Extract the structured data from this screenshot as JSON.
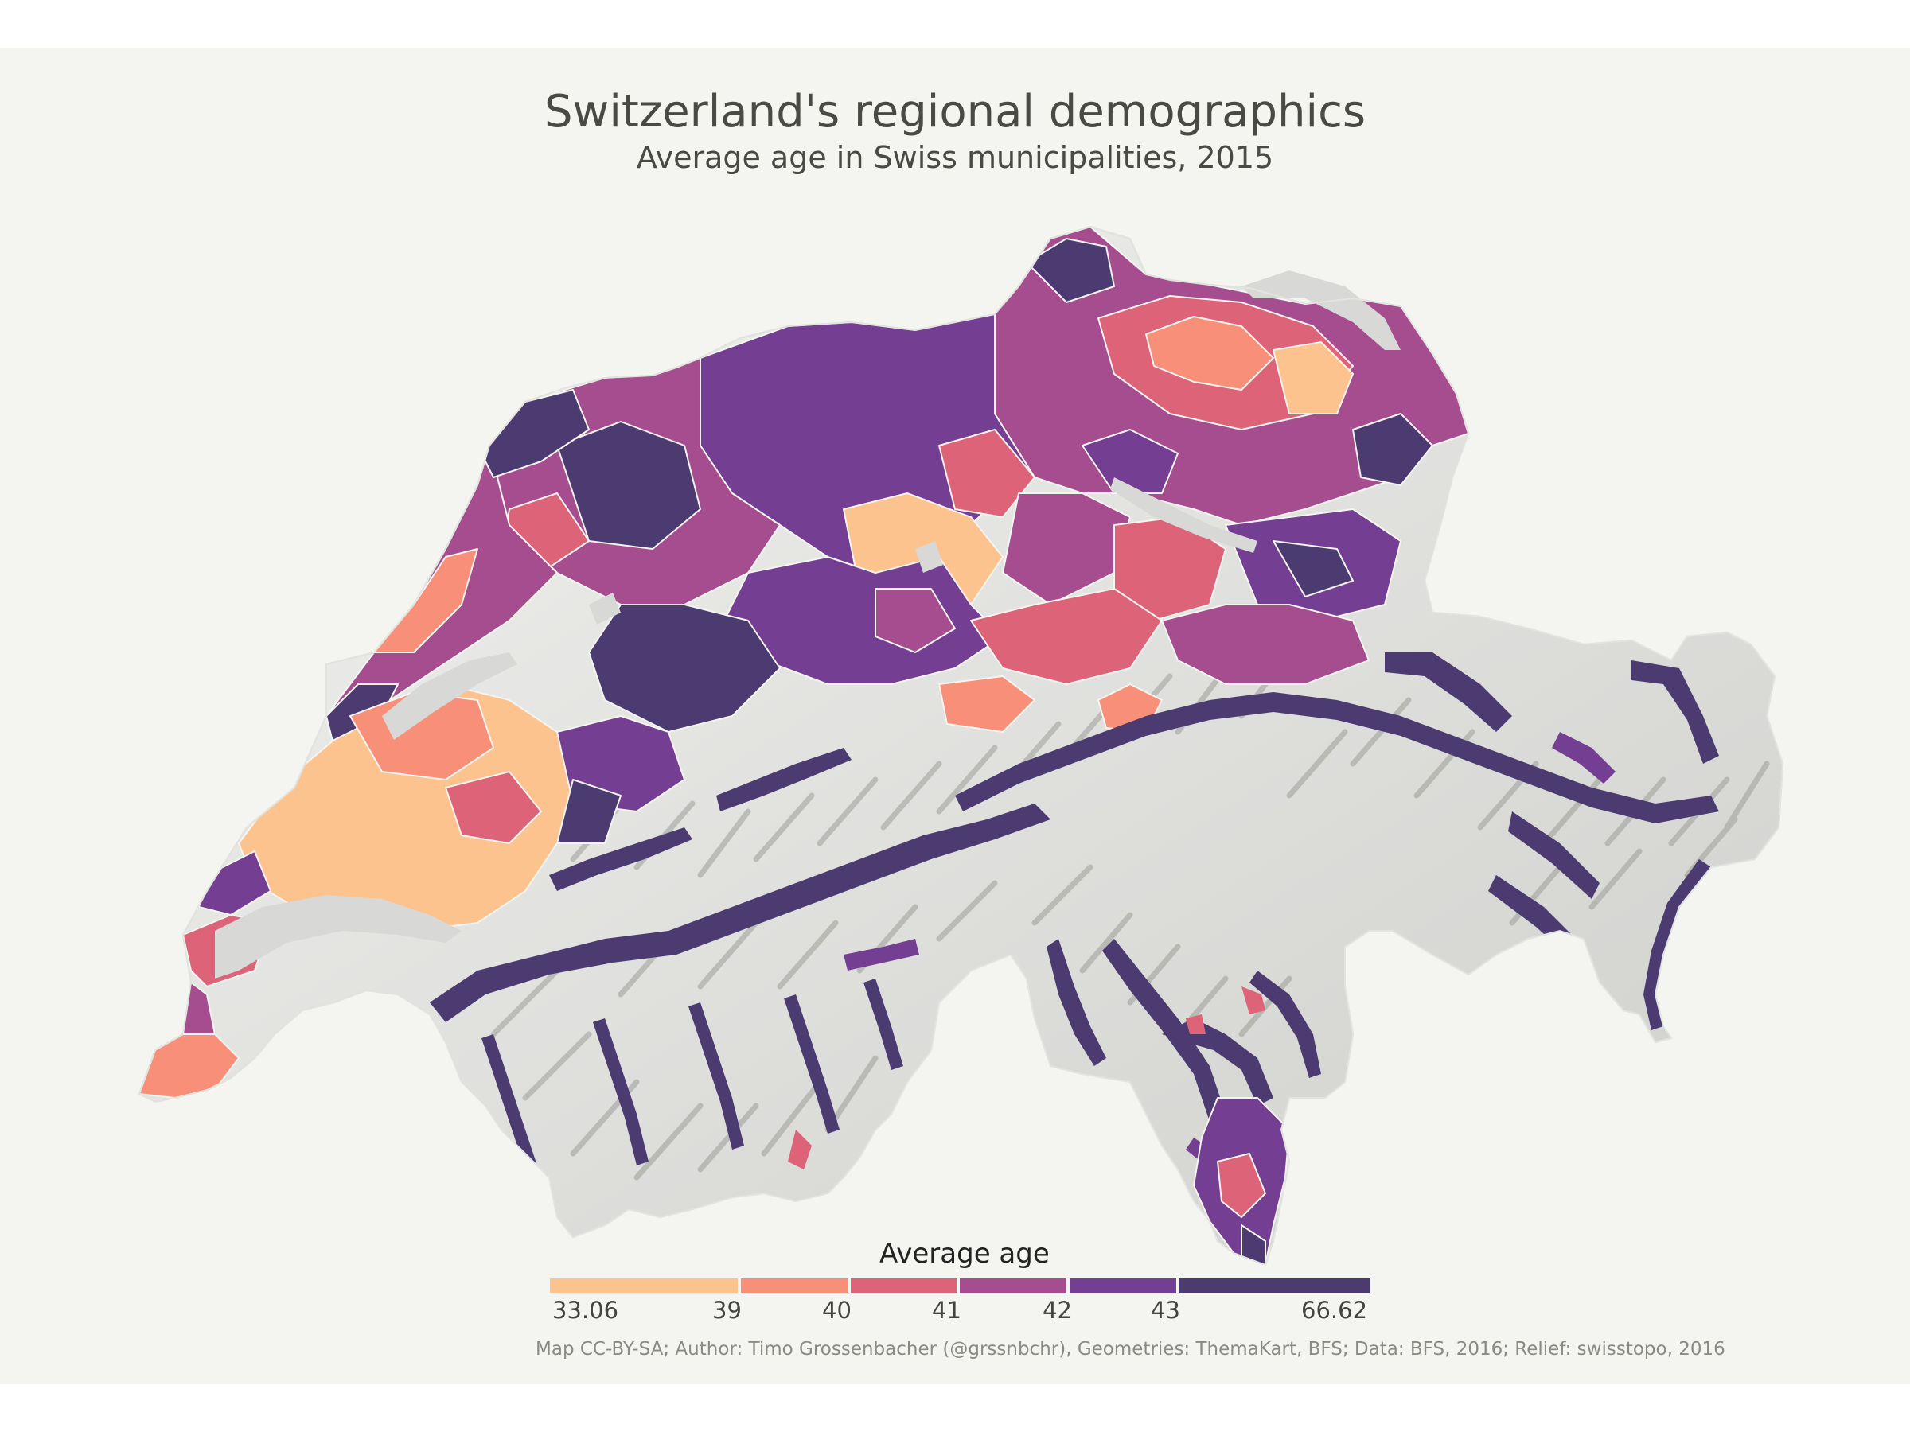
{
  "title": "Switzerland's regional demographics",
  "subtitle": "Average age in Swiss municipalities, 2015",
  "legend": {
    "title": "Average age",
    "bins": [
      {
        "from": "33.06",
        "to": "39",
        "color": "#fcc38e"
      },
      {
        "from": "39",
        "to": "40",
        "color": "#f88f78"
      },
      {
        "from": "40",
        "to": "41",
        "color": "#dc6378"
      },
      {
        "from": "41",
        "to": "42",
        "color": "#a64d90"
      },
      {
        "from": "42",
        "to": "43",
        "color": "#743e92"
      },
      {
        "from": "43",
        "to": "66.62",
        "color": "#4b3b71"
      }
    ],
    "labels": [
      "33.06",
      "39",
      "40",
      "41",
      "42",
      "43",
      "66.62"
    ]
  },
  "caption": "Map CC-BY-SA; Author: Timo Grossenbacher (@grssnbchr), Geometries: ThemaKart, BFS; Data: BFS, 2016; Relief: swisstopo, 2016",
  "colors": {
    "background": "#f4f4f0",
    "relief": "#e9e9e6",
    "relief_shadow": "#9c9c98",
    "lakes": "#d8d8d6"
  }
}
